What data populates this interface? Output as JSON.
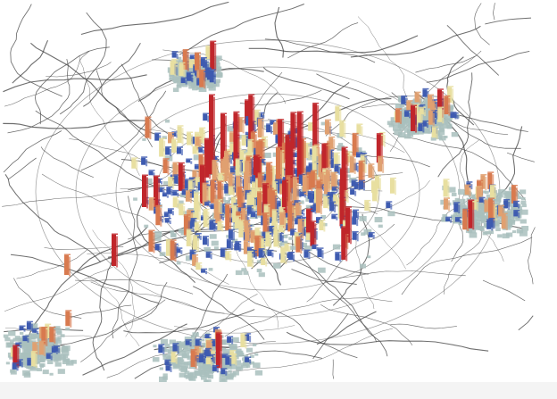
{
  "map": {
    "kind": "3d-prism-density-map",
    "has_text_labels": false,
    "legend_visible": false,
    "base_map": "street-network",
    "colors": {
      "background": "#ffffff",
      "roads": "#4a4a4a",
      "grid_cells": "#a9bfbd",
      "low_value": "#3e5bb0",
      "low_mid_value": "#e8dfa0",
      "mid_value": "#e0a070",
      "high_value": "#d87a4f",
      "peak_value": "#c0262b"
    },
    "value_classes": [
      "low",
      "low_mid",
      "mid",
      "high",
      "peak"
    ]
  }
}
